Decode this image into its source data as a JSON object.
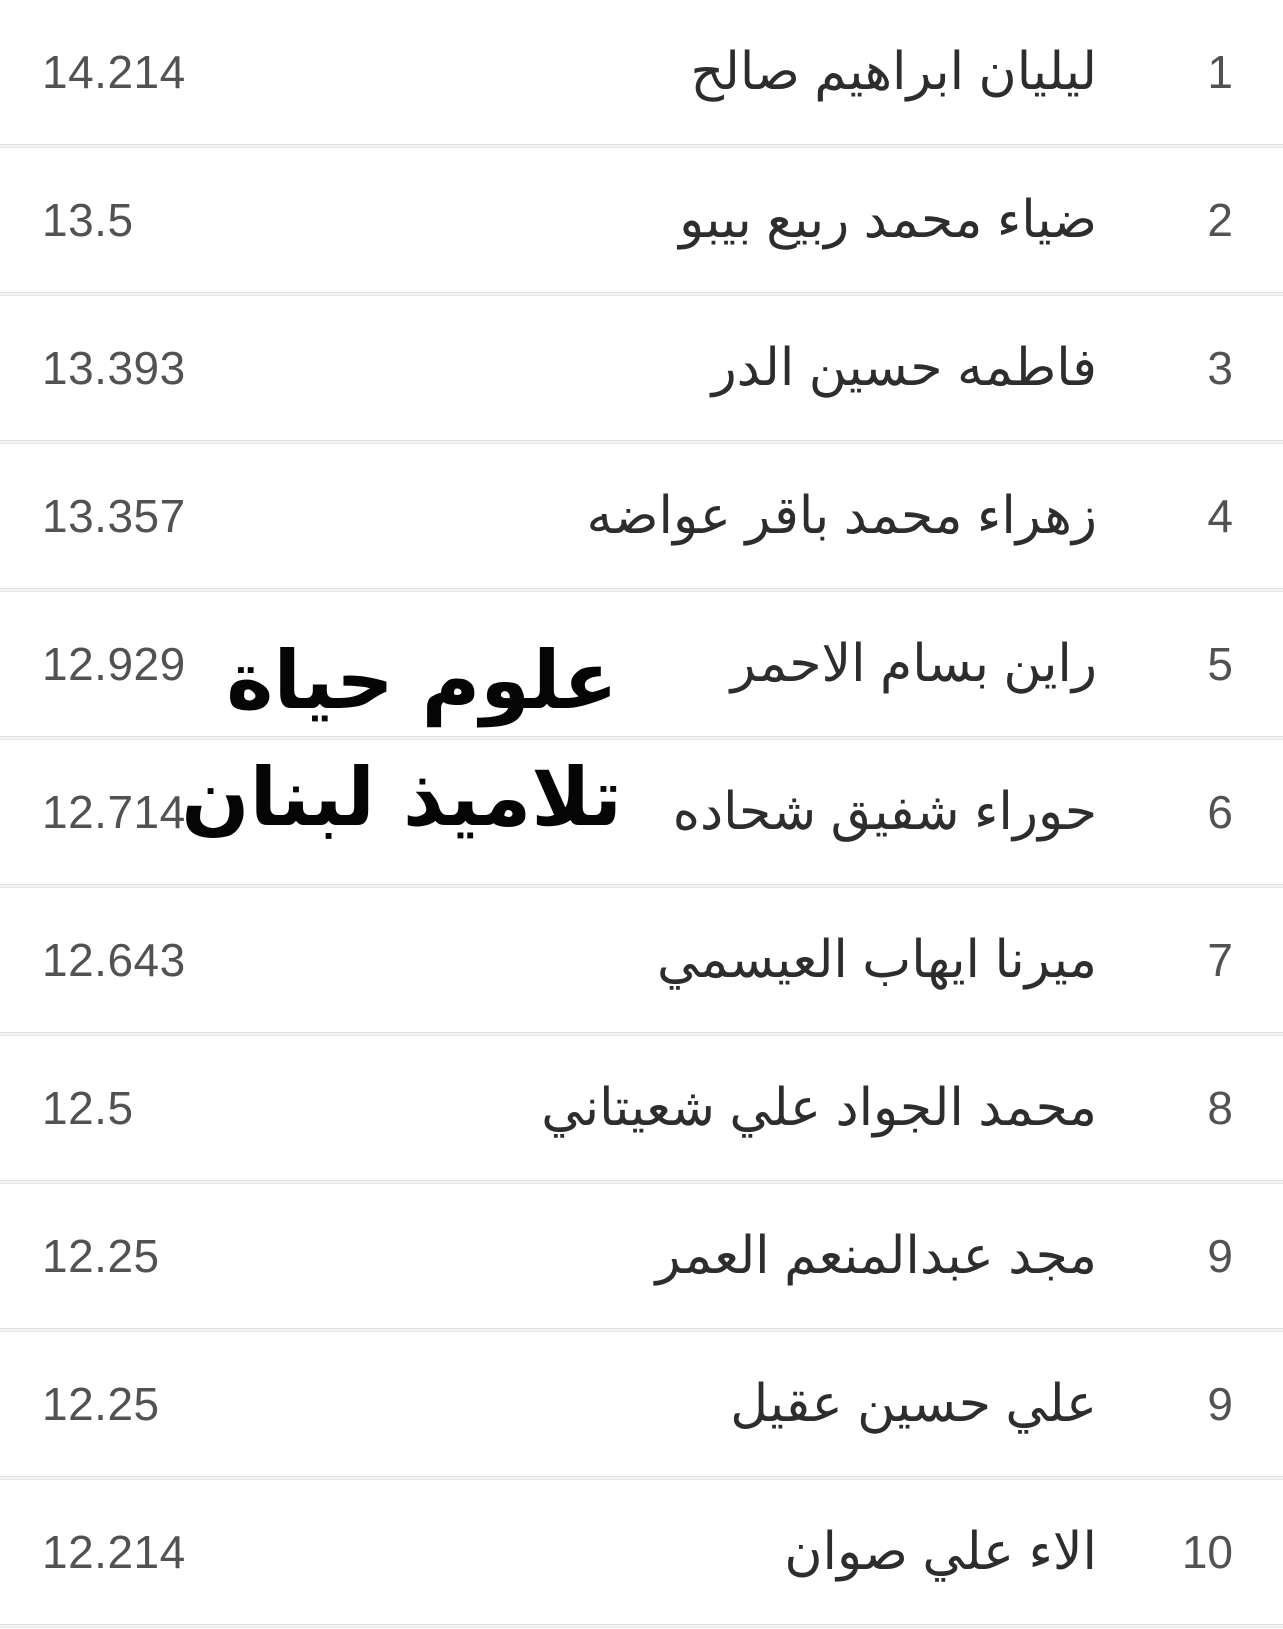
{
  "list_title": "",
  "watermark": {
    "line1": "علوم حياة",
    "line2": "تلاميذ لبنان"
  },
  "table": {
    "columns": [
      "rank",
      "name",
      "score"
    ],
    "rows": [
      {
        "rank": "1",
        "name": "ليليان ابراهيم صالح",
        "score": "14.214"
      },
      {
        "rank": "2",
        "name": "ضياء محمد ربيع بيبو",
        "score": "13.5"
      },
      {
        "rank": "3",
        "name": "فاطمه حسين الدر",
        "score": "13.393"
      },
      {
        "rank": "4",
        "name": "زهراء محمد باقر عواضه",
        "score": "13.357"
      },
      {
        "rank": "5",
        "name": "راين بسام الاحمر",
        "score": "12.929"
      },
      {
        "rank": "6",
        "name": "حوراء شفيق شحاده",
        "score": "12.714"
      },
      {
        "rank": "7",
        "name": "ميرنا ايهاب العيسمي",
        "score": "12.643"
      },
      {
        "rank": "8",
        "name": "محمد الجواد علي شعيتاني",
        "score": "12.5"
      },
      {
        "rank": "9",
        "name": "مجد عبدالمنعم العمر",
        "score": "12.25"
      },
      {
        "rank": "9",
        "name": "علي حسين عقيل",
        "score": "12.25"
      },
      {
        "rank": "10",
        "name": "الاء علي صوان",
        "score": "12.214"
      }
    ]
  },
  "colors": {
    "background": "#ffffff",
    "name_text": "#2d2d2d",
    "score_text": "#525252",
    "rank_text": "#525252",
    "divider_line": "#dcdcdc",
    "divider_fill": "#f5f5f5",
    "watermark_text": "#050505"
  }
}
